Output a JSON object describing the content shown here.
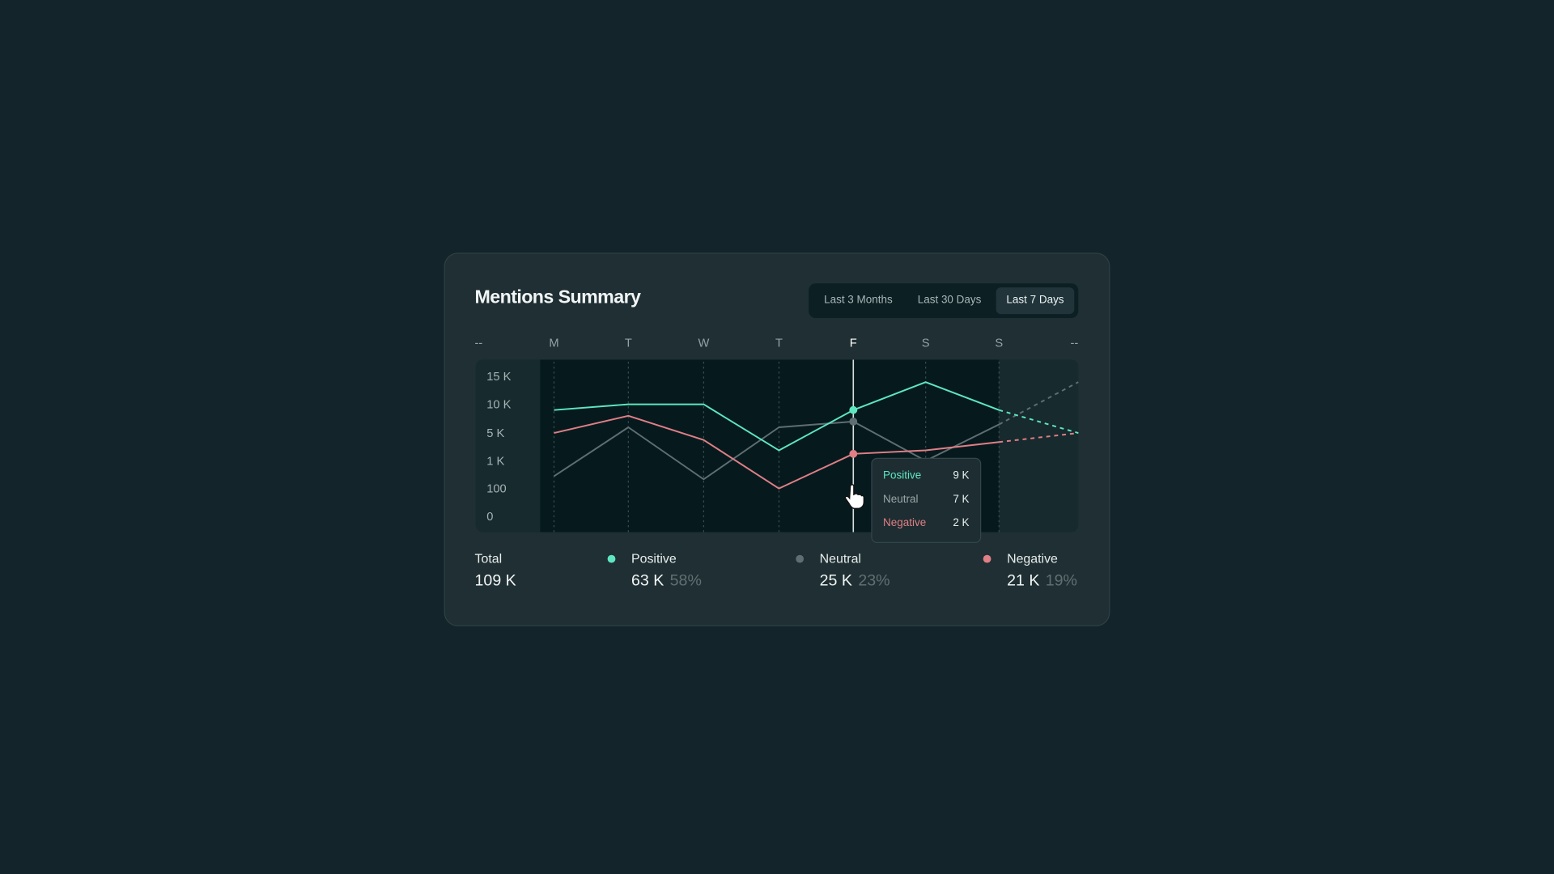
{
  "header": {
    "title": "Mentions Summary"
  },
  "range_tabs": [
    {
      "label": "Last 3 Months",
      "active": false
    },
    {
      "label": "Last 30 Days",
      "active": false
    },
    {
      "label": "Last 7 Days",
      "active": true
    }
  ],
  "chart_data": {
    "type": "line",
    "categories": [
      "--",
      "M",
      "T",
      "W",
      "T",
      "F",
      "S",
      "S",
      "--"
    ],
    "active_category_index": 5,
    "y_ticks": [
      "15 K",
      "10 K",
      "5 K",
      "1 K",
      "100",
      "0"
    ],
    "y_tick_values": [
      15000,
      10000,
      5000,
      1000,
      100,
      0
    ],
    "y_scale": "ordinal-tick (non-linear)",
    "grid": "vertical dashed",
    "series": [
      {
        "name": "Positive",
        "color": "#5ee6c0",
        "values": [
          null,
          9000,
          10000,
          10000,
          2500,
          9000,
          14000,
          9000,
          5000
        ],
        "projected_from_index": 7
      },
      {
        "name": "Neutral",
        "color": "#5f6e72",
        "values": [
          null,
          500,
          6000,
          400,
          6000,
          7000,
          1000,
          6500,
          14000
        ],
        "projected_from_index": 7
      },
      {
        "name": "Negative",
        "color": "#e07f86",
        "values": [
          null,
          5000,
          8000,
          4000,
          100,
          2000,
          2500,
          3700,
          5000
        ],
        "projected_from_index": 7
      }
    ]
  },
  "tooltip": {
    "rows": [
      {
        "label": "Positive",
        "value": "9 K",
        "color": "#5ee6c0"
      },
      {
        "label": "Neutral",
        "value": "7 K",
        "color": "#9aa6a8"
      },
      {
        "label": "Negative",
        "value": "2 K",
        "color": "#e07f86"
      }
    ]
  },
  "summary": {
    "total": {
      "label": "Total",
      "value": "109 K"
    },
    "positive": {
      "label": "Positive",
      "value": "63 K",
      "pct": "58%",
      "color": "#5ee6c0"
    },
    "neutral": {
      "label": "Neutral",
      "value": "25 K",
      "pct": "23%",
      "color": "#5f6e72"
    },
    "negative": {
      "label": "Negative",
      "value": "21 K",
      "pct": "19%",
      "color": "#e07f86"
    }
  }
}
